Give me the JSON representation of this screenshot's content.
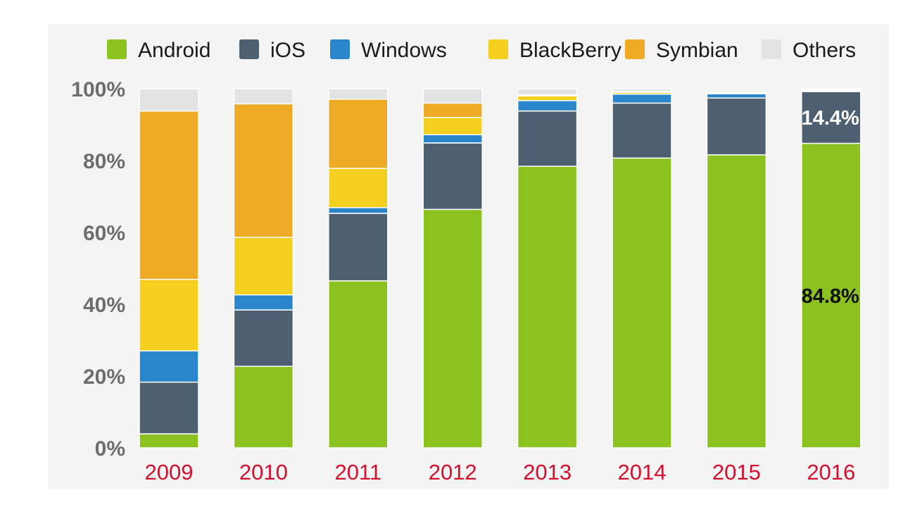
{
  "chart_data": {
    "type": "bar",
    "stacked": true,
    "categories": [
      "2009",
      "2010",
      "2011",
      "2012",
      "2013",
      "2014",
      "2015",
      "2016"
    ],
    "series": [
      {
        "name": "Android",
        "color": "#8bc220",
        "values": [
          3.9,
          22.7,
          46.5,
          66.4,
          78.4,
          80.7,
          81.6,
          84.8
        ]
      },
      {
        "name": "iOS",
        "color": "#4d5f70",
        "values": [
          14.4,
          15.7,
          18.8,
          18.5,
          15.4,
          15.3,
          15.8,
          14.4
        ]
      },
      {
        "name": "Windows",
        "color": "#2a86ca",
        "values": [
          8.7,
          4.2,
          1.6,
          2.3,
          2.9,
          2.5,
          1.2,
          0.3
        ]
      },
      {
        "name": "BlackBerry",
        "color": "#f4cf1d",
        "values": [
          19.9,
          16.0,
          10.9,
          4.8,
          1.3,
          0.5,
          0.2,
          0.1
        ]
      },
      {
        "name": "Symbian",
        "color": "#efab26",
        "values": [
          46.9,
          37.2,
          19.3,
          4.0,
          0.3,
          0.2,
          0.1,
          0.1
        ]
      },
      {
        "name": "Others",
        "color": "#e3e3e3",
        "values": [
          6.2,
          4.2,
          2.9,
          4.0,
          1.7,
          0.8,
          0.1,
          0.3
        ]
      }
    ],
    "yticks": [
      "0%",
      "20%",
      "40%",
      "60%",
      "80%",
      "100%"
    ],
    "ylim": [
      0,
      100
    ],
    "legend_position": "top",
    "annotations": [
      {
        "text": "14.4%",
        "category": "2016",
        "series": "iOS",
        "color": "#ffffff"
      },
      {
        "text": "84.8%",
        "category": "2016",
        "series": "Android",
        "color": "#111111"
      }
    ],
    "title": "",
    "xlabel": "",
    "ylabel": ""
  }
}
